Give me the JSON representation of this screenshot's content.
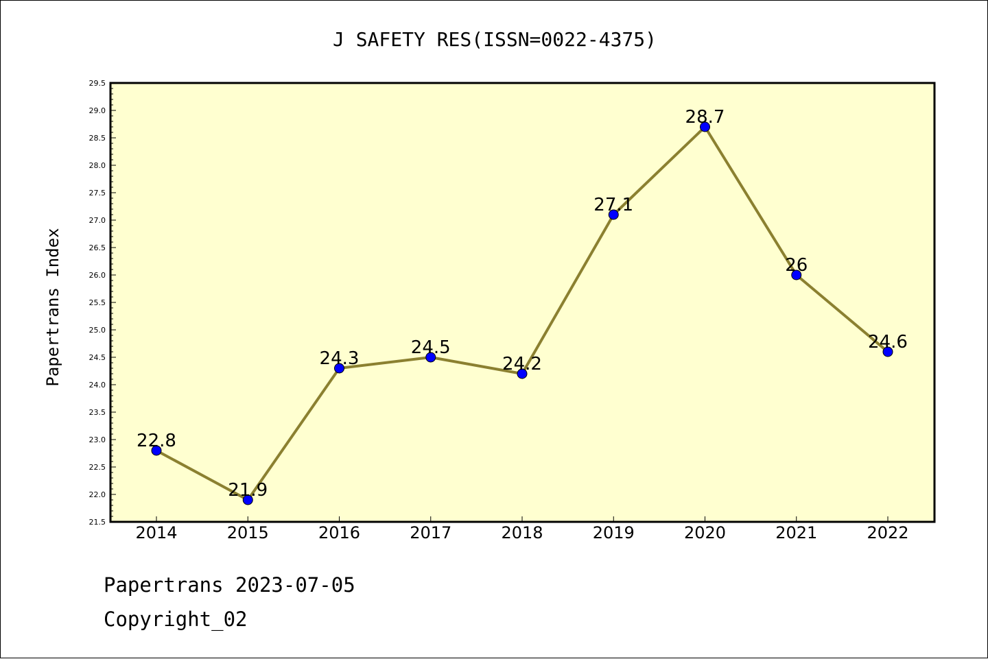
{
  "chart_data": {
    "type": "line",
    "title": "J SAFETY RES(ISSN=0022-4375)",
    "xlabel": "",
    "ylabel": "Papertrans Index",
    "categories": [
      "2014",
      "2015",
      "2016",
      "2017",
      "2018",
      "2019",
      "2020",
      "2021",
      "2022"
    ],
    "values": [
      22.8,
      21.9,
      24.3,
      24.5,
      24.2,
      27.1,
      28.7,
      26,
      24.6
    ],
    "data_labels": [
      "22.8",
      "21.9",
      "24.3",
      "24.5",
      "24.2",
      "27.1",
      "28.7",
      "26",
      "24.6"
    ],
    "ylim": [
      21.5,
      29.5
    ],
    "yticks": [
      "21.5",
      "22.0",
      "22.5",
      "23.0",
      "23.5",
      "24.0",
      "24.5",
      "25.0",
      "25.5",
      "26.0",
      "26.5",
      "27.0",
      "27.5",
      "28.0",
      "28.5",
      "29.0",
      "29.5"
    ],
    "grid": false,
    "legend": "none",
    "colors": {
      "plot_background": "#ffffd0",
      "line": "#8b8030",
      "marker": "#0000ff"
    }
  },
  "footer": {
    "line1": "Papertrans 2023-07-05",
    "line2": "Copyright_02"
  }
}
